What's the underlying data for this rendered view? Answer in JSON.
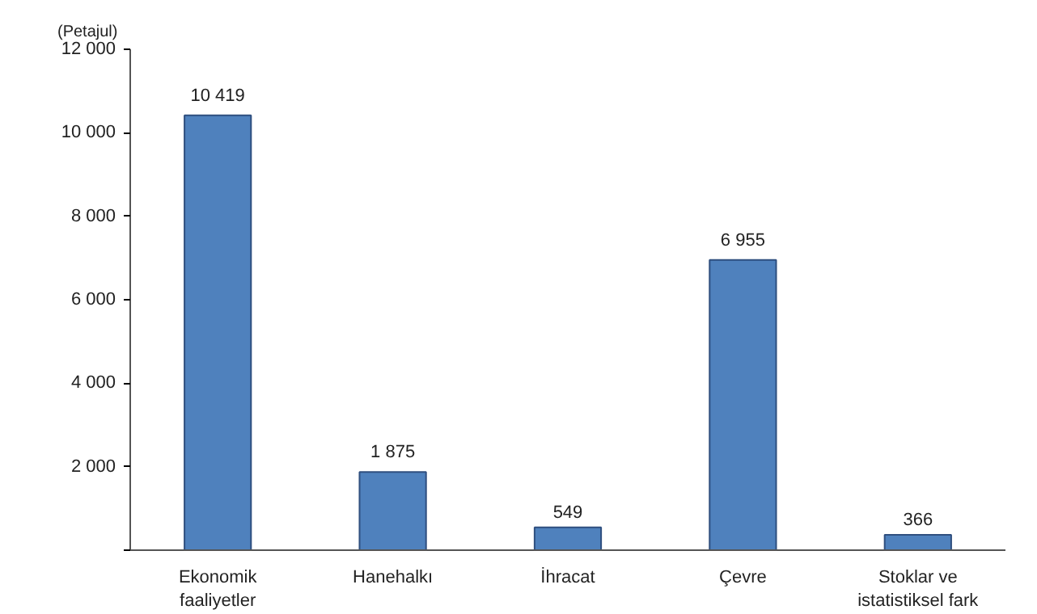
{
  "chart_data": {
    "type": "bar",
    "ylabel": "(Petajul)",
    "categories": [
      "Ekonomik\nfaaliyetler",
      "Hanehalkı",
      "İhracat",
      "Çevre",
      "Stoklar ve\nistatistiksel fark"
    ],
    "values": [
      10419,
      1875,
      549,
      6955,
      366
    ],
    "value_labels": [
      "10 419",
      "1 875",
      "549",
      "6 955",
      "366"
    ],
    "color": "#4f81bd",
    "ylim": [
      0,
      12000
    ],
    "yticks": [
      {
        "value": 0,
        "label": null
      },
      {
        "value": 2000,
        "label": "2 000"
      },
      {
        "value": 4000,
        "label": "4 000"
      },
      {
        "value": 6000,
        "label": "6 000"
      },
      {
        "value": 8000,
        "label": "8 000"
      },
      {
        "value": 10000,
        "label": "10 000"
      },
      {
        "value": 12000,
        "label": "12 000"
      }
    ],
    "grid": false
  }
}
